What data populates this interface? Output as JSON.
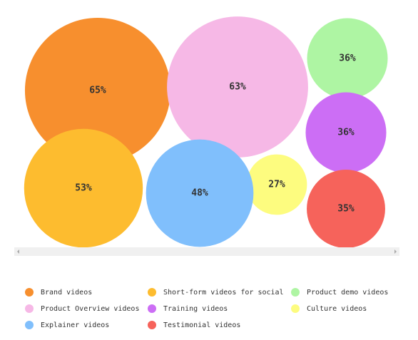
{
  "chart_data": {
    "type": "bubble",
    "categories": [
      "Brand videos",
      "Short-form videos for social",
      "Product demo videos",
      "Product Overview videos",
      "Training videos",
      "Culture videos",
      "Explainer videos",
      "Testimonial videos"
    ],
    "values": [
      65,
      53,
      36,
      63,
      36,
      27,
      48,
      35
    ],
    "value_labels": [
      "65%",
      "53%",
      "36%",
      "63%",
      "36%",
      "27%",
      "48%",
      "35%"
    ],
    "colors": [
      "#f78f2e",
      "#fdbc2f",
      "#aef5a3",
      "#f6b8e6",
      "#cc6ef5",
      "#fdfc7f",
      "#80bffc",
      "#f6635b"
    ],
    "legend": "bottom"
  }
}
